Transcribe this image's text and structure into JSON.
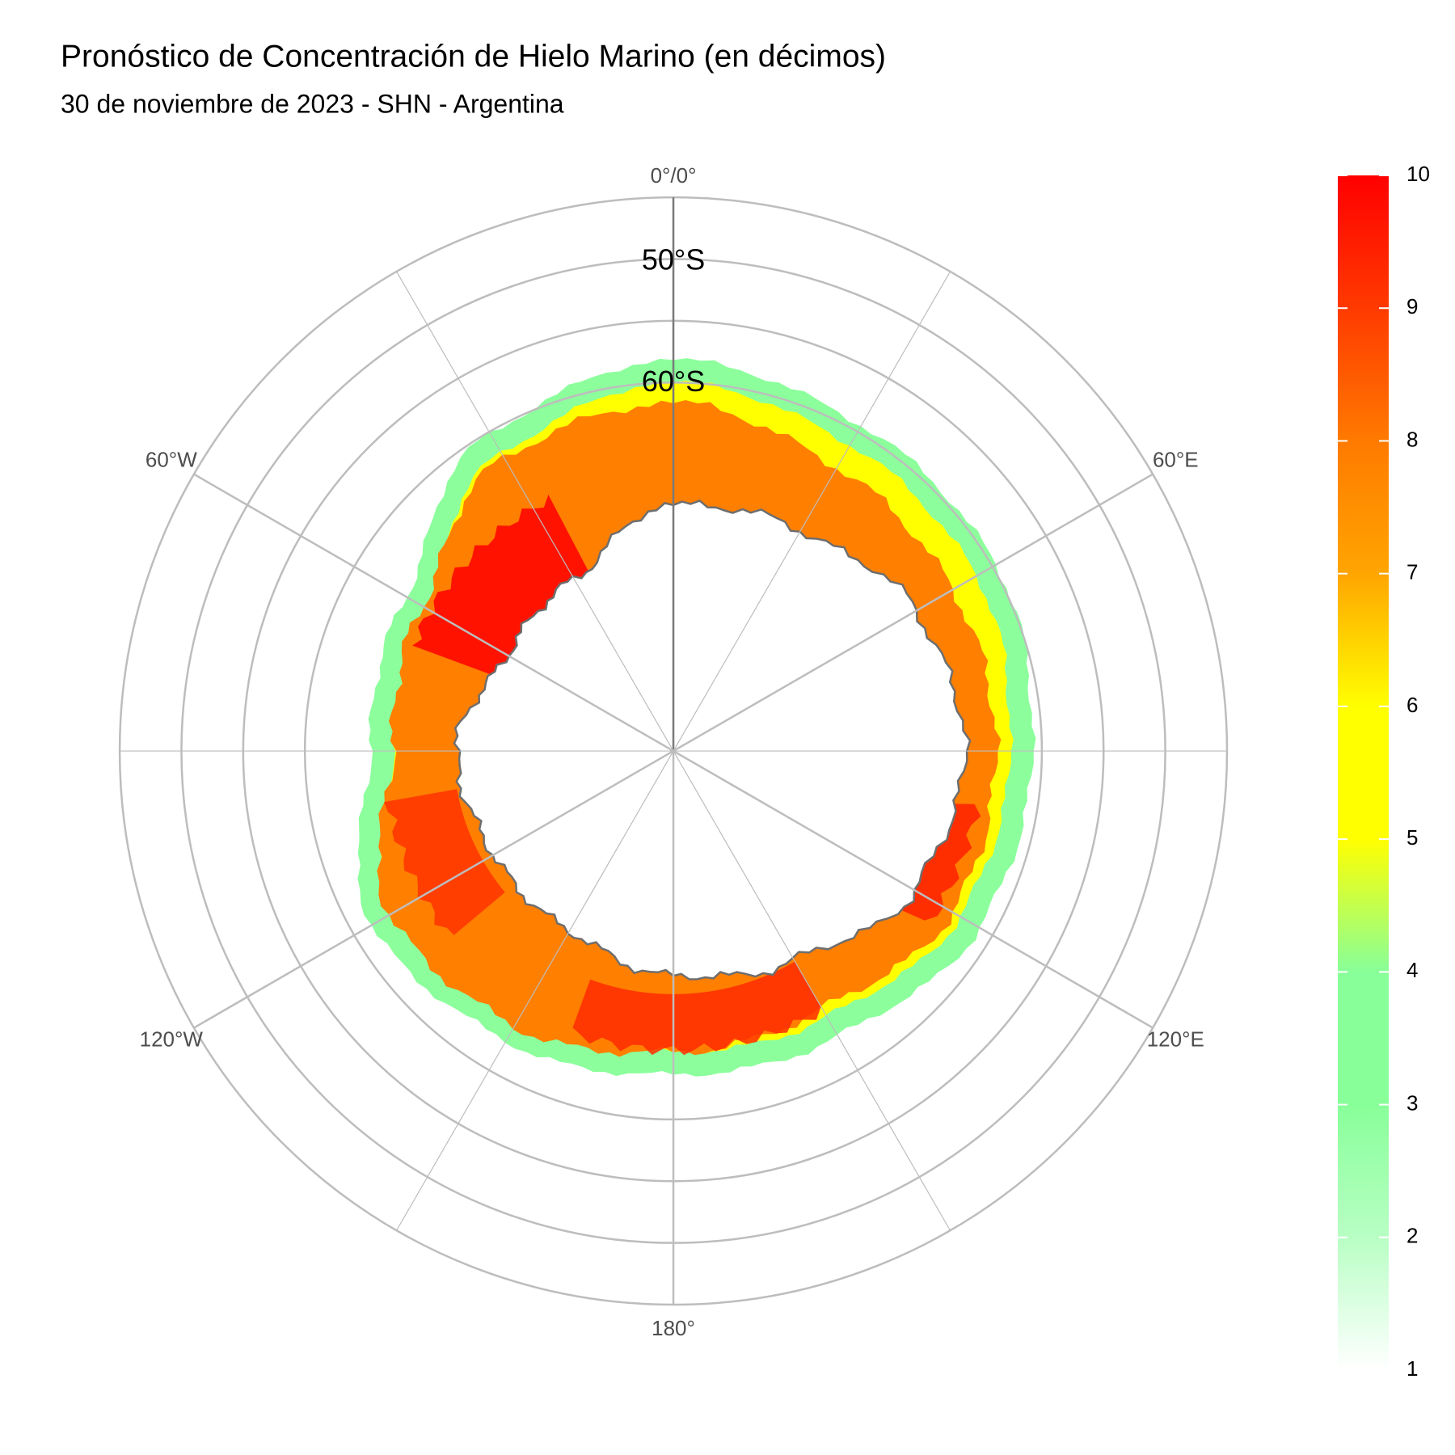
{
  "map": {
    "title": "Pronóstico de Concentración de Hielo Marino (en décimos)",
    "subtitle": "30 de noviembre de 2023 - SHN - Argentina",
    "longitude_labels": [
      "0°/0°",
      "60°E",
      "120°E",
      "180°",
      "120°W",
      "60°W"
    ],
    "latitude_labels": [
      "50°S",
      "60°S"
    ]
  },
  "legend": {
    "range": [
      1,
      10
    ],
    "ticks": [
      1,
      2,
      3,
      4,
      5,
      6,
      7,
      8,
      9,
      10
    ],
    "colors": [
      "#ffffff",
      "#b8ffc4",
      "#88ff99",
      "#88ff99",
      "#ffff00",
      "#ffff00",
      "#ffa500",
      "#ff7a00",
      "#ff3a00",
      "#ff0000"
    ]
  }
}
